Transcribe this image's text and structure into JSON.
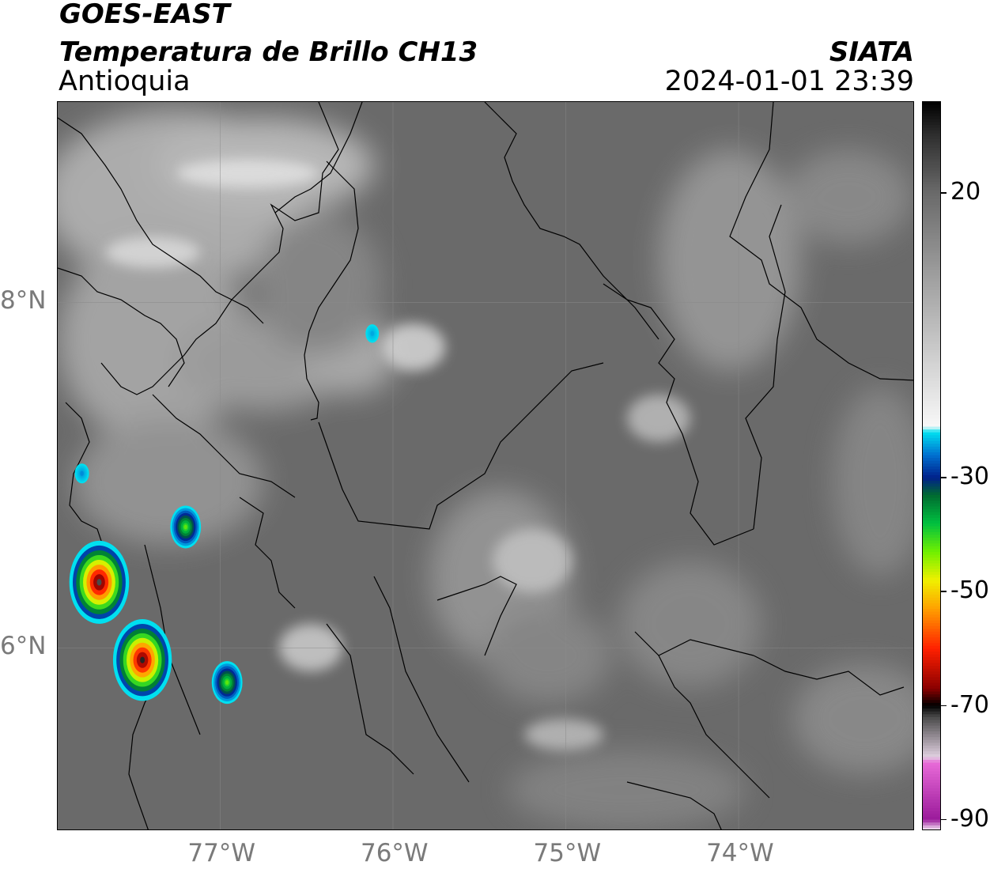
{
  "header": {
    "satellite": "GOES-EAST",
    "product": "Temperatura de Brillo CH13",
    "region": "Antioquia",
    "organization": "SIATA",
    "timestamp": "2024-01-01 23:39"
  },
  "map": {
    "projection": "PlateCarree",
    "extent": {
      "lon_min": -77.94,
      "lon_max": -72.98,
      "lat_min": 4.94,
      "lat_max": 9.16
    },
    "lat_ticks": [
      {
        "value": 8,
        "label": "8°N"
      },
      {
        "value": 6,
        "label": "6°N"
      }
    ],
    "lon_ticks": [
      {
        "value": -77,
        "label": "77°W"
      },
      {
        "value": -76,
        "label": "76°W"
      },
      {
        "value": -75,
        "label": "75°W"
      },
      {
        "value": -74,
        "label": "74°W"
      }
    ],
    "gridlines": true,
    "background_colors": {
      "warm_ground": "#6a6a6a",
      "cool_cloud": "#d8d8d8"
    },
    "convective_cells": [
      {
        "id": "cell-1",
        "lon": -77.7,
        "lat": 6.38,
        "min_temp": -72
      },
      {
        "id": "cell-2",
        "lon": -77.45,
        "lat": 5.93,
        "min_temp": -71
      },
      {
        "id": "cell-3",
        "lon": -77.2,
        "lat": 6.7,
        "min_temp": -42
      },
      {
        "id": "cell-4",
        "lon": -76.96,
        "lat": 5.8,
        "min_temp": -42
      },
      {
        "id": "cell-5",
        "lon": -77.8,
        "lat": 7.01,
        "min_temp": -25
      },
      {
        "id": "cell-6",
        "lon": -76.12,
        "lat": 7.82,
        "min_temp": -24
      }
    ]
  },
  "colorbar": {
    "ticks": [
      {
        "value": 20,
        "label": "20"
      },
      {
        "value": -30,
        "label": "-30"
      },
      {
        "value": -50,
        "label": "-50"
      },
      {
        "value": -70,
        "label": "-70"
      },
      {
        "value": -90,
        "label": "-90"
      }
    ],
    "range": [
      -92,
      36
    ],
    "stops": [
      {
        "value": -92,
        "color": "#ffffff"
      },
      {
        "value": -90,
        "color": "#9a1a9a"
      },
      {
        "value": -80,
        "color": "#e86ad8"
      },
      {
        "value": -79,
        "color": "#e0d0e0"
      },
      {
        "value": -72,
        "color": "#4a4a4a"
      },
      {
        "value": -70,
        "color": "#000000"
      },
      {
        "value": -67,
        "color": "#8a0000"
      },
      {
        "value": -60,
        "color": "#ff2000"
      },
      {
        "value": -53,
        "color": "#ffa000"
      },
      {
        "value": -48,
        "color": "#f0f000"
      },
      {
        "value": -43,
        "color": "#70f000"
      },
      {
        "value": -38,
        "color": "#00c040"
      },
      {
        "value": -33,
        "color": "#006a30"
      },
      {
        "value": -30,
        "color": "#00208a"
      },
      {
        "value": -26,
        "color": "#0070d0"
      },
      {
        "value": -22,
        "color": "#00e0f0"
      },
      {
        "value": -21,
        "color": "#f8f8f8"
      },
      {
        "value": 5,
        "color": "#a0a0a0"
      },
      {
        "value": 20,
        "color": "#6a6a6a"
      },
      {
        "value": 30,
        "color": "#303030"
      },
      {
        "value": 36,
        "color": "#000000"
      }
    ]
  }
}
